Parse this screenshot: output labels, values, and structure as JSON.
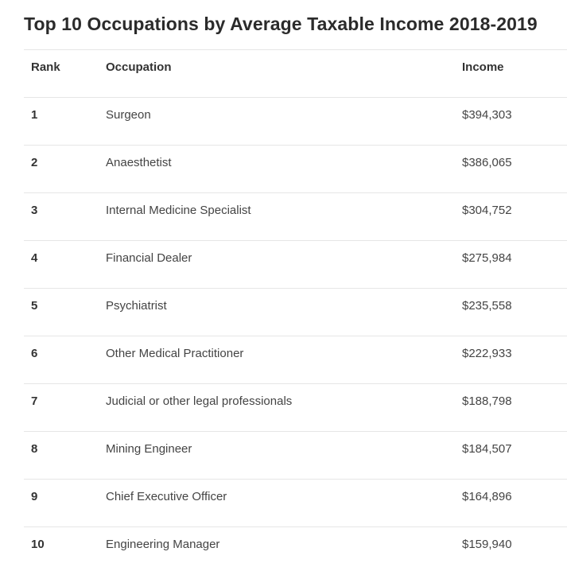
{
  "title": "Top 10 Occupations by Average Taxable Income 2018-2019",
  "table": {
    "headers": {
      "rank": "Rank",
      "occupation": "Occupation",
      "income": "Income"
    },
    "rows": [
      {
        "rank": "1",
        "occupation": "Surgeon",
        "income": "$394,303"
      },
      {
        "rank": "2",
        "occupation": "Anaesthetist",
        "income": "$386,065"
      },
      {
        "rank": "3",
        "occupation": "Internal Medicine Specialist",
        "income": "$304,752"
      },
      {
        "rank": "4",
        "occupation": "Financial Dealer",
        "income": "$275,984"
      },
      {
        "rank": "5",
        "occupation": "Psychiatrist",
        "income": "$235,558"
      },
      {
        "rank": "6",
        "occupation": "Other Medical Practitioner",
        "income": "$222,933"
      },
      {
        "rank": "7",
        "occupation": "Judicial or other legal professionals",
        "income": "$188,798"
      },
      {
        "rank": "8",
        "occupation": "Mining Engineer",
        "income": "$184,507"
      },
      {
        "rank": "9",
        "occupation": "Chief Executive Officer",
        "income": "$164,896"
      },
      {
        "rank": "10",
        "occupation": "Engineering Manager",
        "income": "$159,940"
      }
    ]
  }
}
